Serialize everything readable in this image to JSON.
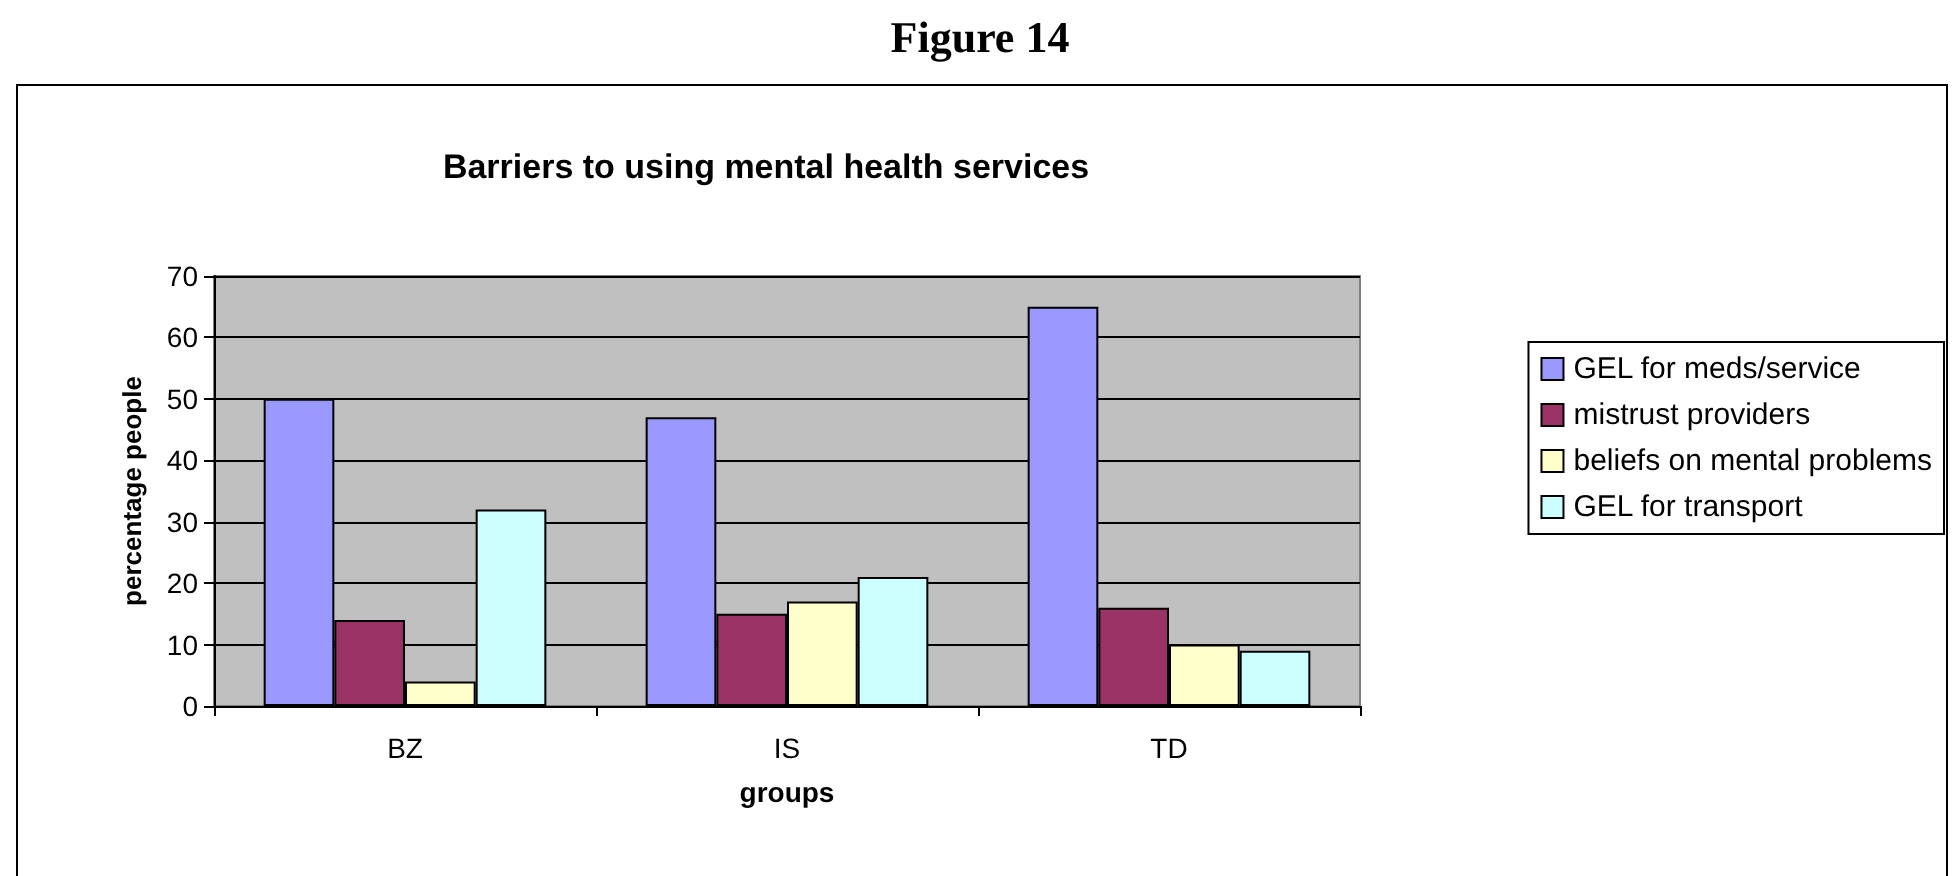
{
  "chart_data": {
    "type": "bar",
    "title": "Barriers to using mental health services",
    "annotations": [
      "Figure 14"
    ],
    "xlabel": "groups",
    "ylabel": "percentage people",
    "categories": [
      "BZ",
      "IS",
      "TD"
    ],
    "series": [
      {
        "name": "GEL for meds/service",
        "color": "#9999ff",
        "values": [
          50,
          47,
          65
        ]
      },
      {
        "name": "mistrust providers",
        "color": "#993366",
        "values": [
          14,
          15,
          16
        ]
      },
      {
        "name": "beliefs on mental problems",
        "color": "#ffffcc",
        "values": [
          4,
          17,
          10
        ]
      },
      {
        "name": "GEL for transport",
        "color": "#ccffff",
        "values": [
          32,
          21,
          9
        ]
      }
    ],
    "ylim": [
      0,
      70
    ],
    "yticks": [
      0,
      10,
      20,
      30,
      40,
      50,
      60,
      70
    ],
    "grid": "y",
    "legend": "right"
  }
}
